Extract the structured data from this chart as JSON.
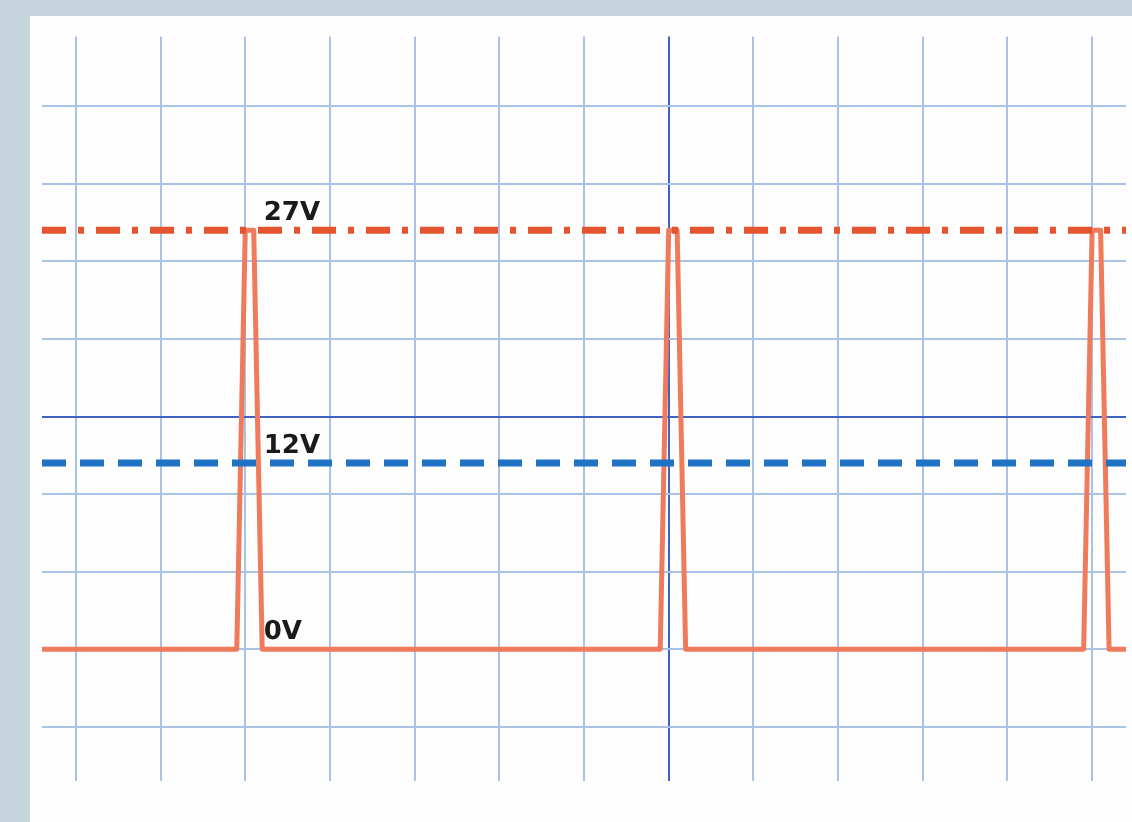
{
  "chart_data": {
    "type": "line",
    "categories": [
      null,
      null,
      null,
      null,
      null,
      null,
      null,
      null,
      null,
      null,
      null,
      null,
      null,
      null,
      null,
      null,
      null,
      null,
      null,
      null,
      null,
      null,
      null,
      null,
      null,
      null,
      null,
      null,
      null,
      null,
      null,
      null,
      null,
      null,
      null,
      null,
      null,
      null,
      null,
      null,
      null,
      null,
      null,
      null,
      null,
      null,
      null,
      null,
      null,
      null,
      null,
      null,
      null,
      null,
      null,
      null,
      null,
      null,
      null,
      null,
      null,
      null,
      null,
      null,
      null,
      null,
      null,
      null,
      null,
      null,
      null,
      null,
      null,
      null,
      null,
      null,
      null,
      null,
      null,
      null,
      null,
      null,
      null,
      null,
      null,
      null,
      null,
      null,
      null,
      null,
      null,
      null,
      null,
      null,
      null,
      null,
      null,
      null,
      null,
      null,
      null,
      null,
      null,
      null,
      null,
      null,
      null,
      null,
      null,
      null,
      null,
      null,
      null,
      null,
      null,
      null,
      null,
      null,
      null,
      null,
      null,
      null,
      null,
      null,
      null,
      null,
      null,
      null,
      null
    ],
    "series": [
      {
        "color": "#f07a5c",
        "values": [
          0,
          0,
          0,
          0,
          0,
          0,
          0,
          0,
          0,
          0,
          0,
          0,
          0,
          0,
          0,
          0,
          0,
          0,
          0,
          0,
          0,
          0,
          0,
          0,
          27,
          27,
          0,
          0,
          0,
          0,
          0,
          0,
          0,
          0,
          0,
          0,
          0,
          0,
          0,
          0,
          0,
          0,
          0,
          0,
          0,
          0,
          0,
          0,
          0,
          0,
          0,
          0,
          0,
          0,
          0,
          0,
          0,
          0,
          0,
          0,
          0,
          0,
          0,
          0,
          0,
          0,
          0,
          0,
          0,
          0,
          0,
          0,
          0,
          0,
          27,
          27,
          0,
          0,
          0,
          0,
          0,
          0,
          0,
          0,
          0,
          0,
          0,
          0,
          0,
          0,
          0,
          0,
          0,
          0,
          0,
          0,
          0,
          0,
          0,
          0,
          0,
          0,
          0,
          0,
          0,
          0,
          0,
          0,
          0,
          0,
          0,
          0,
          0,
          0,
          0,
          0,
          0,
          0,
          0,
          0,
          0,
          0,
          0,
          0,
          27,
          27,
          0,
          0,
          0
        ]
      }
    ],
    "ylim": [
      -8.5,
      39.5
    ],
    "yticks": [
      {
        "value": -5,
        "label": null
      },
      {
        "value": 0,
        "label": null
      },
      {
        "value": 5,
        "label": null
      },
      {
        "value": 10,
        "label": null
      },
      {
        "value": 15,
        "label": null
      },
      {
        "value": 20,
        "label": null
      },
      {
        "value": 25,
        "label": null
      },
      {
        "value": 30,
        "label": null
      },
      {
        "value": 35,
        "label": null
      }
    ],
    "ref_lines": [
      {
        "axis": "y",
        "value": 27,
        "label": "27V",
        "color": "#e4552f",
        "line_style": "dashdot"
      },
      {
        "axis": "y",
        "value": 12,
        "label": "12V",
        "color": "#1f72c4",
        "line_style": "dashed"
      }
    ],
    "annotations": [
      {
        "text": "0V",
        "y": 0
      }
    ],
    "grid": true,
    "marker": "none",
    "line_style": "solid"
  }
}
